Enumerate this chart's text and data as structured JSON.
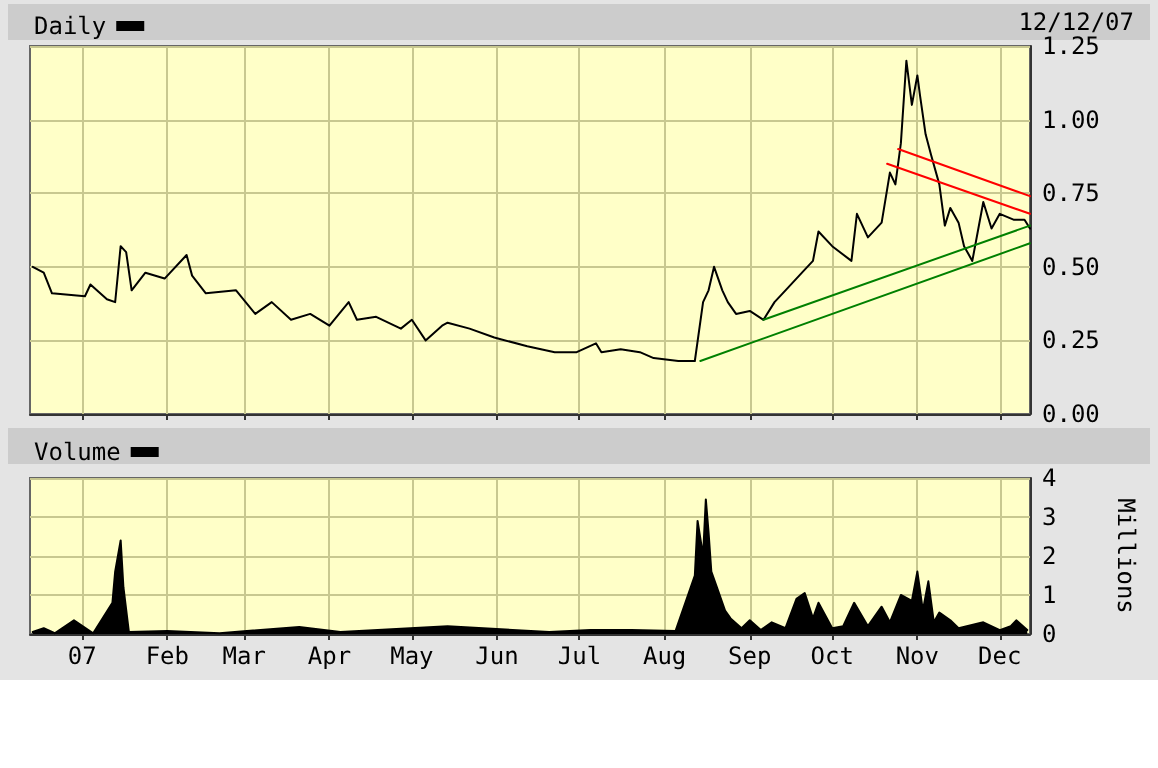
{
  "chart_data": [
    {
      "type": "line",
      "legend": "top left",
      "grid": true,
      "tick_labels": "y",
      "marker": "none",
      "line_style": "solid",
      "annotations": [
        "12/12/07"
      ],
      "xlim": [
        "2006-12-13",
        "2007-12-12"
      ],
      "xticks": [
        {
          "value": "2007-01-01",
          "label": null
        },
        {
          "value": "2007-02-01",
          "label": null
        },
        {
          "value": "2007-03-01",
          "label": null
        },
        {
          "value": "2007-04-01",
          "label": null
        },
        {
          "value": "2007-05-01",
          "label": null
        },
        {
          "value": "2007-06-01",
          "label": null
        },
        {
          "value": "2007-07-01",
          "label": null
        },
        {
          "value": "2007-08-01",
          "label": null
        },
        {
          "value": "2007-09-01",
          "label": null
        },
        {
          "value": "2007-10-01",
          "label": null
        },
        {
          "value": "2007-11-01",
          "label": null
        },
        {
          "value": "2007-12-01",
          "label": null
        }
      ],
      "ylim": [
        0,
        1.25
      ],
      "yticks": [
        {
          "value": 0,
          "label": "0.00"
        },
        {
          "value": 0.25,
          "label": "0.25"
        },
        {
          "value": 0.5,
          "label": "0.50"
        },
        {
          "value": 0.75,
          "label": "0.75"
        },
        {
          "value": 1,
          "label": "1.00"
        },
        {
          "value": 1.25,
          "label": "1.25"
        }
      ],
      "series": [
        {
          "name": "Daily",
          "color": "#000000",
          "x": [
            "2006-12-14",
            "2006-12-18",
            "2006-12-21",
            "2007-01-02",
            "2007-01-04",
            "2007-01-10",
            "2007-01-13",
            "2007-01-15",
            "2007-01-17",
            "2007-01-19",
            "2007-01-24",
            "2007-01-31",
            "2007-02-08",
            "2007-02-10",
            "2007-02-15",
            "2007-02-26",
            "2007-03-05",
            "2007-03-11",
            "2007-03-18",
            "2007-03-25",
            "2007-04-01",
            "2007-04-08",
            "2007-04-11",
            "2007-04-18",
            "2007-04-27",
            "2007-05-01",
            "2007-05-06",
            "2007-05-12",
            "2007-05-14",
            "2007-05-22",
            "2007-05-31",
            "2007-06-12",
            "2007-06-22",
            "2007-06-30",
            "2007-07-07",
            "2007-07-09",
            "2007-07-16",
            "2007-07-23",
            "2007-07-28",
            "2007-08-06",
            "2007-08-12",
            "2007-08-15",
            "2007-08-17",
            "2007-08-19",
            "2007-08-22",
            "2007-08-24",
            "2007-08-27",
            "2007-09-01",
            "2007-09-06",
            "2007-09-10",
            "2007-09-14",
            "2007-09-20",
            "2007-09-24",
            "2007-09-26",
            "2007-10-01",
            "2007-10-08",
            "2007-10-10",
            "2007-10-14",
            "2007-10-19",
            "2007-10-22",
            "2007-10-24",
            "2007-10-26",
            "2007-10-28",
            "2007-10-30",
            "2007-11-01",
            "2007-11-02",
            "2007-11-04",
            "2007-11-06",
            "2007-11-09",
            "2007-11-11",
            "2007-11-13",
            "2007-11-16",
            "2007-11-18",
            "2007-11-21",
            "2007-11-23",
            "2007-11-25",
            "2007-11-28",
            "2007-12-01",
            "2007-12-06",
            "2007-12-10",
            "2007-12-12"
          ],
          "values": [
            0.5,
            0.48,
            0.41,
            0.4,
            0.44,
            0.39,
            0.38,
            0.57,
            0.55,
            0.42,
            0.48,
            0.46,
            0.54,
            0.47,
            0.41,
            0.42,
            0.34,
            0.38,
            0.32,
            0.34,
            0.3,
            0.38,
            0.32,
            0.33,
            0.29,
            0.32,
            0.25,
            0.3,
            0.31,
            0.29,
            0.26,
            0.23,
            0.21,
            0.21,
            0.24,
            0.21,
            0.22,
            0.21,
            0.19,
            0.18,
            0.18,
            0.38,
            0.42,
            0.5,
            0.42,
            0.38,
            0.34,
            0.35,
            0.32,
            0.38,
            0.42,
            0.48,
            0.52,
            0.62,
            0.57,
            0.52,
            0.68,
            0.6,
            0.65,
            0.82,
            0.78,
            0.92,
            1.2,
            1.05,
            1.15,
            1.08,
            0.95,
            0.88,
            0.78,
            0.64,
            0.7,
            0.65,
            0.57,
            0.52,
            0.62,
            0.72,
            0.63,
            0.68,
            0.66,
            0.66,
            0.63
          ]
        },
        {
          "color": "#008000",
          "x": [
            "2007-08-14",
            "2007-12-12"
          ],
          "values": [
            0.18,
            0.58
          ]
        },
        {
          "color": "#008000",
          "x": [
            "2007-09-06",
            "2007-12-12"
          ],
          "values": [
            0.32,
            0.64
          ]
        },
        {
          "color": "#ff0000",
          "x": [
            "2007-10-25",
            "2007-12-12"
          ],
          "values": [
            0.9,
            0.74
          ]
        },
        {
          "color": "#ff0000",
          "x": [
            "2007-10-21",
            "2007-12-12"
          ],
          "values": [
            0.85,
            0.68
          ]
        }
      ]
    },
    {
      "type": "area",
      "legend": "top left",
      "grid": true,
      "marker": "none",
      "ylabel": "Millions",
      "xlim": [
        "2006-12-13",
        "2007-12-12"
      ],
      "xticks": [
        {
          "value": "2007-01-01",
          "label": "07"
        },
        {
          "value": "2007-02-01",
          "label": "Feb"
        },
        {
          "value": "2007-03-01",
          "label": "Mar"
        },
        {
          "value": "2007-04-01",
          "label": "Apr"
        },
        {
          "value": "2007-05-01",
          "label": "May"
        },
        {
          "value": "2007-06-01",
          "label": "Jun"
        },
        {
          "value": "2007-07-01",
          "label": "Jul"
        },
        {
          "value": "2007-08-01",
          "label": "Aug"
        },
        {
          "value": "2007-09-01",
          "label": "Sep"
        },
        {
          "value": "2007-10-01",
          "label": "Oct"
        },
        {
          "value": "2007-11-01",
          "label": "Nov"
        },
        {
          "value": "2007-12-01",
          "label": "Dec"
        }
      ],
      "ylim": [
        0,
        4
      ],
      "yticks": [
        0,
        1,
        2,
        3,
        4
      ],
      "series": [
        {
          "name": "Volume",
          "color": "#000000",
          "x": [
            "2006-12-14",
            "2006-12-18",
            "2006-12-22",
            "2006-12-29",
            "2007-01-05",
            "2007-01-12",
            "2007-01-13",
            "2007-01-15",
            "2007-01-16",
            "2007-01-18",
            "2007-02-01",
            "2007-02-20",
            "2007-03-21",
            "2007-04-05",
            "2007-05-14",
            "2007-06-20",
            "2007-07-05",
            "2007-07-20",
            "2007-08-05",
            "2007-08-12",
            "2007-08-13",
            "2007-08-15",
            "2007-08-16",
            "2007-08-17",
            "2007-08-18",
            "2007-08-20",
            "2007-08-23",
            "2007-08-25",
            "2007-08-29",
            "2007-09-01",
            "2007-09-05",
            "2007-09-09",
            "2007-09-14",
            "2007-09-18",
            "2007-09-21",
            "2007-09-24",
            "2007-09-26",
            "2007-10-01",
            "2007-10-05",
            "2007-10-09",
            "2007-10-14",
            "2007-10-19",
            "2007-10-22",
            "2007-10-26",
            "2007-10-30",
            "2007-11-01",
            "2007-11-03",
            "2007-11-05",
            "2007-11-07",
            "2007-11-09",
            "2007-11-13",
            "2007-11-16",
            "2007-11-22",
            "2007-11-25",
            "2007-12-01",
            "2007-12-05",
            "2007-12-07",
            "2007-12-11"
          ],
          "values": [
            0.05,
            0.15,
            0.02,
            0.35,
            0.02,
            0.8,
            1.6,
            2.4,
            1.2,
            0.05,
            0.08,
            0.02,
            0.18,
            0.05,
            0.2,
            0.05,
            0.1,
            0.1,
            0.08,
            1.5,
            2.9,
            2.0,
            3.45,
            2.6,
            1.6,
            1.2,
            0.6,
            0.4,
            0.15,
            0.35,
            0.1,
            0.3,
            0.15,
            0.9,
            1.05,
            0.4,
            0.8,
            0.15,
            0.2,
            0.8,
            0.2,
            0.7,
            0.3,
            1.0,
            0.85,
            1.6,
            0.6,
            1.35,
            0.3,
            0.55,
            0.35,
            0.15,
            0.25,
            0.3,
            0.1,
            0.2,
            0.35,
            0.1
          ]
        }
      ]
    }
  ]
}
